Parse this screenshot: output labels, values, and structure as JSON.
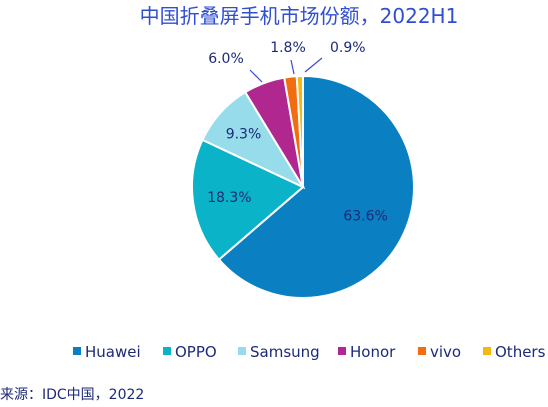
{
  "chart_data": {
    "type": "pie",
    "title": "中国折叠屏手机市场份额，2022H1",
    "categories": [
      "Huawei",
      "OPPO",
      "Samsung",
      "Honor",
      "vivo",
      "Others"
    ],
    "values": [
      63.6,
      18.3,
      9.3,
      6.0,
      1.8,
      0.9
    ],
    "labels": [
      "63.6%",
      "18.3%",
      "9.3%",
      "6.0%",
      "1.8%",
      "0.9%"
    ],
    "colors": [
      "#0a7fc2",
      "#0ab3c7",
      "#96dceb",
      "#b0288f",
      "#f26d0f",
      "#f7b712"
    ],
    "legend_position": "bottom"
  },
  "source": "来源：IDC中国，2022"
}
